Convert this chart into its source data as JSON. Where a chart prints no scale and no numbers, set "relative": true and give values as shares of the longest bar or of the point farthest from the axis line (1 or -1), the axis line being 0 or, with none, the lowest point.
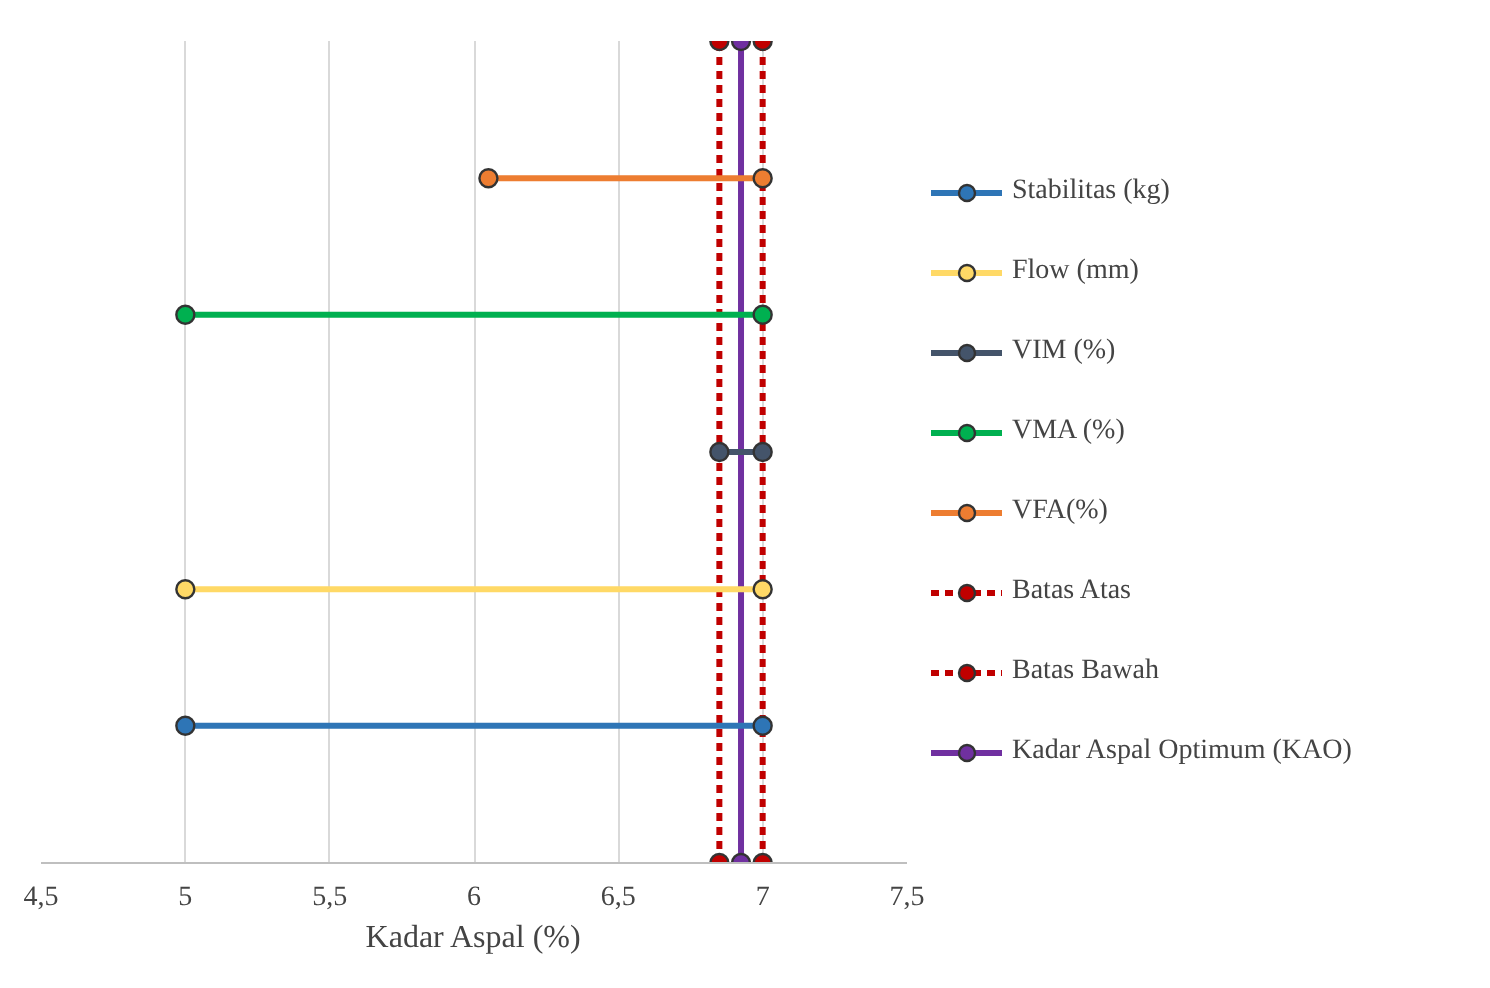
{
  "chart_data": {
    "type": "line",
    "xlabel": "Kadar Aspal (%)",
    "xlim": [
      4.5,
      7.5
    ],
    "xticks": [
      {
        "value": 4.5,
        "label": "4,5"
      },
      5,
      {
        "value": 5.5,
        "label": "5,5"
      },
      6,
      {
        "value": 6.5,
        "label": "6,5"
      },
      7,
      {
        "value": 7.5,
        "label": "7,5"
      }
    ],
    "relative": true,
    "grid": "x",
    "legend": "right",
    "marker": "circle",
    "series": [
      {
        "name": "Stabilitas (kg)",
        "color": "#2e75b6",
        "x": [
          5,
          7
        ],
        "values": [
          0.167,
          0.167
        ]
      },
      {
        "name": "Flow (mm)",
        "color": "#ffd966",
        "x": [
          5,
          7
        ],
        "values": [
          0.333,
          0.333
        ]
      },
      {
        "name": "VIM (%)",
        "color": "#44546a",
        "x": [
          6.85,
          7
        ],
        "values": [
          0.5,
          0.5
        ]
      },
      {
        "name": "VMA (%)",
        "color": "#00b050",
        "x": [
          5,
          7
        ],
        "values": [
          0.667,
          0.667
        ]
      },
      {
        "name": "VFA(%)",
        "color": "#ed7d31",
        "x": [
          6.05,
          7
        ],
        "values": [
          0.833,
          0.833
        ]
      },
      {
        "name": "Batas Atas",
        "color": "#c00000",
        "line_style": "dashed",
        "x": [
          7,
          7
        ],
        "values": [
          0,
          1
        ]
      },
      {
        "name": "Batas Bawah",
        "color": "#c00000",
        "line_style": "dashed",
        "x": [
          6.85,
          6.85
        ],
        "values": [
          0,
          1
        ]
      },
      {
        "name": "Kadar Aspal Optimum (KAO)",
        "color": "#7030a0",
        "x": [
          6.925,
          6.925
        ],
        "values": [
          0,
          1
        ]
      }
    ]
  }
}
